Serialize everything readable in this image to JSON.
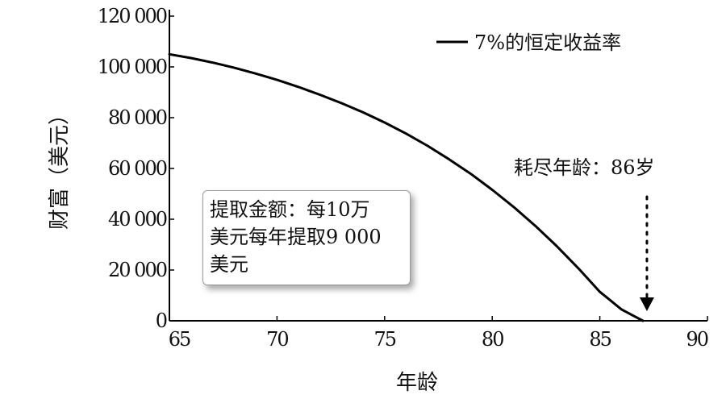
{
  "chart_data": {
    "type": "line",
    "title": "",
    "xlabel": "年龄",
    "ylabel": "财富（美元）",
    "xlim": [
      65,
      90
    ],
    "ylim": [
      0,
      120000
    ],
    "x_ticks": [
      65,
      70,
      75,
      80,
      85,
      90
    ],
    "y_ticks": [
      0,
      20000,
      40000,
      60000,
      80000,
      100000,
      120000
    ],
    "x_tick_labels": [
      "65",
      "70",
      "75",
      "80",
      "85",
      "90"
    ],
    "y_tick_labels": [
      "0",
      "20 000",
      "40 000",
      "60 000",
      "80 000",
      "100 000",
      "120 000"
    ],
    "grid": false,
    "legend_position": "top-right",
    "series": [
      {
        "name": "7%的恒定收益率",
        "color": "#000000",
        "x": [
          65,
          66,
          67,
          68,
          69,
          70,
          71,
          72,
          73,
          74,
          75,
          76,
          77,
          78,
          79,
          80,
          81,
          82,
          83,
          84,
          85,
          86,
          87
        ],
        "y": [
          105000,
          103500,
          101700,
          99700,
          97400,
          94900,
          92100,
          89000,
          85700,
          82100,
          78100,
          73700,
          68900,
          63600,
          57900,
          51600,
          44800,
          37400,
          29400,
          20700,
          11400,
          4500,
          0
        ]
      }
    ],
    "annotations": {
      "depletion_label": "耗尽年龄：86岁",
      "depletion_x": 87,
      "info_box_lines": [
        "提取金额：每10万",
        "美元每年提取9 000",
        "美元"
      ]
    }
  }
}
